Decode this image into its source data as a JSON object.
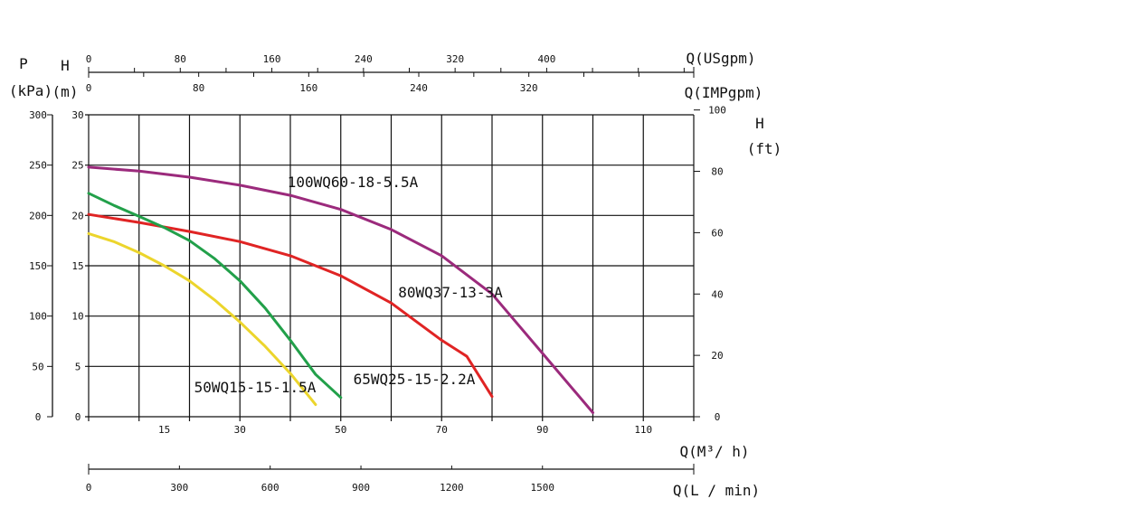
{
  "chart_data": {
    "type": "line",
    "flow_axes": {
      "m3h": {
        "label": "Q(M³/ h)",
        "ticks": [
          15,
          30,
          50,
          70,
          90,
          110
        ],
        "range": [
          0,
          120
        ]
      },
      "lmin": {
        "label": "Q(L / min)",
        "ticks": [
          0,
          300,
          600,
          900,
          1200,
          1500
        ]
      },
      "usgpm": {
        "label": "Q(USgpm)",
        "ticks": [
          0,
          80,
          160,
          240,
          320,
          400
        ]
      },
      "impgpm": {
        "label": "Q(IMPgpm)",
        "ticks": [
          0,
          80,
          160,
          240,
          320
        ]
      }
    },
    "head_axes": {
      "p_kpa": {
        "label_top": "P",
        "label_bottom": "(kPa)",
        "ticks": [
          0,
          50,
          100,
          150,
          200,
          250,
          300
        ]
      },
      "h_m": {
        "label_top": "H",
        "label_bottom": "(m)",
        "ticks": [
          0,
          5,
          10,
          15,
          20,
          25,
          30
        ],
        "range": [
          0,
          30
        ]
      },
      "h_ft": {
        "label_top": "H",
        "label_bottom": "(ft)",
        "ticks": [
          0,
          20,
          40,
          60,
          80,
          100
        ]
      }
    },
    "grid": true,
    "series": [
      {
        "name": "100WQ60-18-5.5A",
        "color": "#9b2a7c",
        "points": [
          [
            0,
            24.8
          ],
          [
            10,
            24.4
          ],
          [
            20,
            23.8
          ],
          [
            30,
            23.0
          ],
          [
            40,
            22.0
          ],
          [
            50,
            20.6
          ],
          [
            60,
            18.6
          ],
          [
            70,
            16.0
          ],
          [
            80,
            12.2
          ],
          [
            90,
            6.3
          ],
          [
            100,
            0.4
          ]
        ]
      },
      {
        "name": "80WQ37-13-3A",
        "color": "#e02424",
        "points": [
          [
            0,
            20.1
          ],
          [
            10,
            19.3
          ],
          [
            20,
            18.4
          ],
          [
            30,
            17.4
          ],
          [
            40,
            16.0
          ],
          [
            50,
            14.0
          ],
          [
            60,
            11.3
          ],
          [
            70,
            7.6
          ],
          [
            75,
            6.0
          ],
          [
            80,
            2.0
          ]
        ]
      },
      {
        "name": "65WQ25-15-2.2A",
        "color": "#22a04a",
        "points": [
          [
            0,
            22.2
          ],
          [
            5,
            21.0
          ],
          [
            10,
            19.9
          ],
          [
            15,
            18.8
          ],
          [
            20,
            17.5
          ],
          [
            25,
            15.7
          ],
          [
            30,
            13.5
          ],
          [
            35,
            10.8
          ],
          [
            40,
            7.6
          ],
          [
            45,
            4.2
          ],
          [
            50,
            1.9
          ]
        ]
      },
      {
        "name": "50WQ15-15-1.5A",
        "color": "#ecd52c",
        "points": [
          [
            0,
            18.2
          ],
          [
            5,
            17.4
          ],
          [
            10,
            16.3
          ],
          [
            15,
            15.0
          ],
          [
            20,
            13.5
          ],
          [
            25,
            11.6
          ],
          [
            30,
            9.4
          ],
          [
            35,
            7.0
          ],
          [
            40,
            4.3
          ],
          [
            45,
            1.2
          ]
        ]
      }
    ]
  }
}
